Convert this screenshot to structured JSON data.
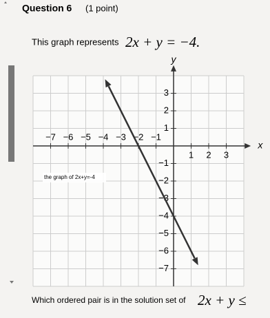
{
  "header": {
    "title": "Question 6",
    "points": "(1 point)"
  },
  "question": {
    "text": "This graph represents",
    "equation": "2x + y = −4."
  },
  "graph": {
    "x_axis_label": "x",
    "y_axis_label": "y",
    "x_tick_labels": [
      "−7",
      "−6",
      "−5",
      "−4",
      "−3",
      "−2",
      "−1",
      "1",
      "2",
      "3"
    ],
    "y_tick_labels": [
      "3",
      "2",
      "1",
      "−1",
      "−2",
      "−3",
      "−4",
      "−5",
      "−6",
      "−7"
    ],
    "line_label": "the graph of 2x+y=-4"
  },
  "next_question": {
    "text": "Which ordered pair is in the solution set of",
    "equation": "2x + y ≤"
  }
}
